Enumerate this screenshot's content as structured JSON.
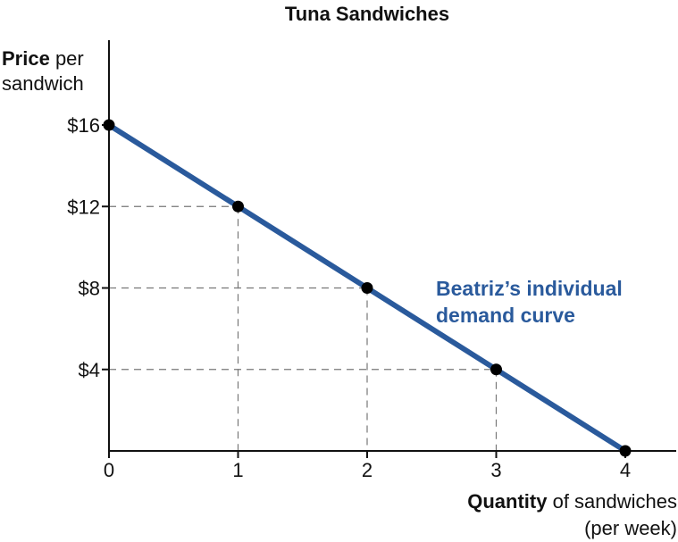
{
  "chart_data": {
    "type": "line",
    "title": "Tuna Sandwiches",
    "ylabel": {
      "bold": "Price",
      "rest": " per",
      "line2": "sandwich"
    },
    "xlabel": {
      "bold": "Quantity",
      "rest": " of sandwiches",
      "line2": "(per week)"
    },
    "x_ticks": [
      "0",
      "1",
      "2",
      "3",
      "4"
    ],
    "y_ticks": [
      {
        "value": 16,
        "label": "$16"
      },
      {
        "value": 12,
        "label": "$12"
      },
      {
        "value": 8,
        "label": "$8"
      },
      {
        "value": 4,
        "label": "$4"
      }
    ],
    "xlim": [
      0,
      4.4
    ],
    "ylim": [
      0,
      20
    ],
    "grid": "dashed guides to points",
    "series": [
      {
        "name": "Beatriz’s individual demand curve",
        "name_lines": [
          "Beatriz’s individual",
          "demand curve"
        ],
        "color": "#2a5a9c",
        "points": [
          {
            "x": 0,
            "y": 16
          },
          {
            "x": 1,
            "y": 12
          },
          {
            "x": 2,
            "y": 8
          },
          {
            "x": 3,
            "y": 4
          },
          {
            "x": 4,
            "y": 0
          }
        ]
      }
    ]
  }
}
